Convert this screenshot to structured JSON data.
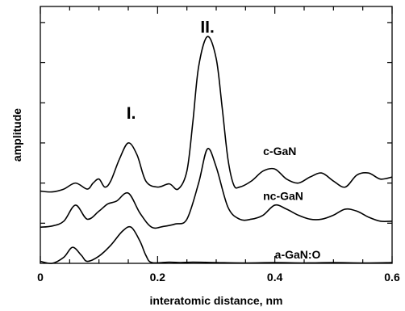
{
  "chart_data": {
    "type": "line",
    "title": "",
    "xlabel": "interatomic distance, nm",
    "ylabel": "amplitude",
    "xlim": [
      0,
      0.6
    ],
    "ylim": [
      0,
      6.4
    ],
    "x_ticks": [
      0,
      0.2,
      0.4,
      0.6
    ],
    "x_tick_labels": [
      "0",
      "0.2",
      "0.4",
      "0.6"
    ],
    "grid": false,
    "legend": "inline labels at right",
    "peak_annotations": [
      {
        "label": "I.",
        "x": 0.155,
        "y": 3.6
      },
      {
        "label": "II.",
        "x": 0.285,
        "y": 5.75
      }
    ],
    "series": [
      {
        "name": "c-GaN",
        "label_pos": {
          "x": 0.38,
          "y": 2.7
        },
        "points": [
          [
            0,
            1.8
          ],
          [
            0.02,
            1.78
          ],
          [
            0.04,
            1.85
          ],
          [
            0.06,
            2.0
          ],
          [
            0.08,
            1.85
          ],
          [
            0.09,
            2.0
          ],
          [
            0.1,
            2.1
          ],
          [
            0.11,
            1.9
          ],
          [
            0.12,
            2.05
          ],
          [
            0.135,
            2.6
          ],
          [
            0.15,
            3.0
          ],
          [
            0.165,
            2.7
          ],
          [
            0.18,
            2.05
          ],
          [
            0.2,
            1.9
          ],
          [
            0.22,
            1.98
          ],
          [
            0.235,
            1.85
          ],
          [
            0.25,
            2.3
          ],
          [
            0.26,
            3.5
          ],
          [
            0.27,
            4.9
          ],
          [
            0.285,
            5.65
          ],
          [
            0.3,
            5.1
          ],
          [
            0.31,
            3.9
          ],
          [
            0.32,
            2.6
          ],
          [
            0.33,
            1.95
          ],
          [
            0.34,
            1.9
          ],
          [
            0.36,
            2.05
          ],
          [
            0.38,
            2.3
          ],
          [
            0.4,
            2.35
          ],
          [
            0.42,
            2.1
          ],
          [
            0.44,
            2.0
          ],
          [
            0.46,
            2.15
          ],
          [
            0.48,
            2.25
          ],
          [
            0.5,
            2.05
          ],
          [
            0.52,
            1.9
          ],
          [
            0.54,
            2.2
          ],
          [
            0.56,
            2.25
          ],
          [
            0.58,
            2.1
          ],
          [
            0.6,
            2.15
          ]
        ]
      },
      {
        "name": "nc-GaN",
        "label_pos": {
          "x": 0.38,
          "y": 1.58
        },
        "points": [
          [
            0,
            0.9
          ],
          [
            0.02,
            0.93
          ],
          [
            0.04,
            1.05
          ],
          [
            0.06,
            1.45
          ],
          [
            0.08,
            1.1
          ],
          [
            0.1,
            1.3
          ],
          [
            0.115,
            1.48
          ],
          [
            0.13,
            1.55
          ],
          [
            0.15,
            1.75
          ],
          [
            0.17,
            1.25
          ],
          [
            0.19,
            0.9
          ],
          [
            0.21,
            0.92
          ],
          [
            0.23,
            0.98
          ],
          [
            0.25,
            1.1
          ],
          [
            0.27,
            2.0
          ],
          [
            0.285,
            2.85
          ],
          [
            0.3,
            2.4
          ],
          [
            0.32,
            1.4
          ],
          [
            0.34,
            1.1
          ],
          [
            0.36,
            1.1
          ],
          [
            0.38,
            1.2
          ],
          [
            0.4,
            1.45
          ],
          [
            0.42,
            1.35
          ],
          [
            0.44,
            1.2
          ],
          [
            0.46,
            1.1
          ],
          [
            0.48,
            1.1
          ],
          [
            0.5,
            1.2
          ],
          [
            0.52,
            1.35
          ],
          [
            0.54,
            1.3
          ],
          [
            0.56,
            1.15
          ],
          [
            0.58,
            1.05
          ],
          [
            0.6,
            1.05
          ]
        ]
      },
      {
        "name": "a-GaN:O",
        "label_pos": {
          "x": 0.4,
          "y": 0.12
        },
        "points": [
          [
            0,
            0.05
          ],
          [
            0.02,
            0.0
          ],
          [
            0.04,
            0.15
          ],
          [
            0.055,
            0.4
          ],
          [
            0.07,
            0.2
          ],
          [
            0.08,
            0.05
          ],
          [
            0.1,
            0.18
          ],
          [
            0.12,
            0.45
          ],
          [
            0.14,
            0.8
          ],
          [
            0.155,
            0.9
          ],
          [
            0.17,
            0.55
          ],
          [
            0.18,
            0.2
          ],
          [
            0.19,
            0.02
          ],
          [
            0.22,
            0.03
          ],
          [
            0.24,
            0.02
          ],
          [
            0.26,
            0.03
          ],
          [
            0.3,
            0.02
          ],
          [
            0.35,
            0.01
          ],
          [
            0.4,
            0.02
          ],
          [
            0.45,
            0.01
          ],
          [
            0.5,
            0.02
          ],
          [
            0.55,
            0.01
          ],
          [
            0.6,
            0.02
          ]
        ]
      }
    ]
  }
}
